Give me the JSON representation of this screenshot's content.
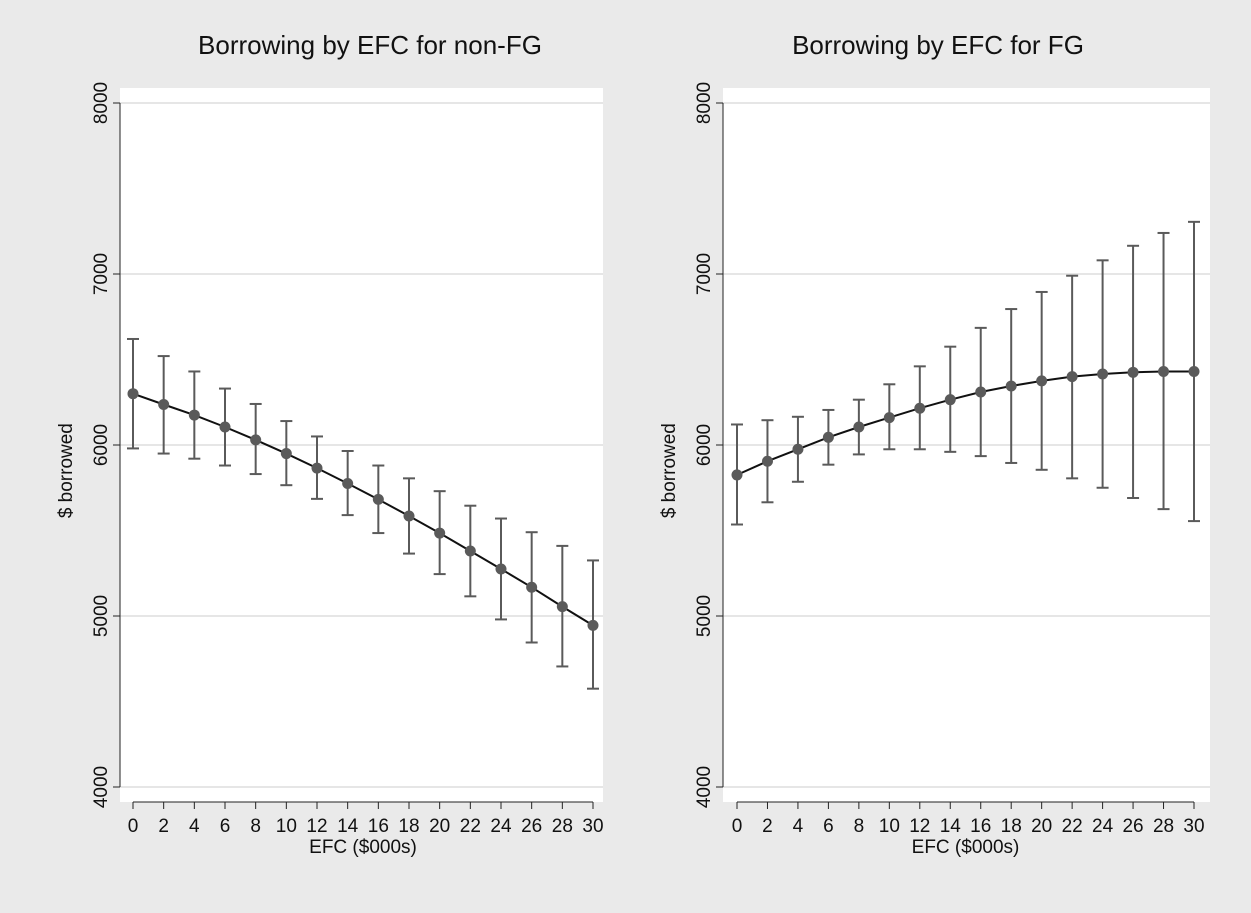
{
  "chart_data": [
    {
      "type": "line",
      "title": "Borrowing by EFC for non-FG",
      "xlabel": "EFC ($000s)",
      "ylabel": "$ borrowed",
      "x": [
        0,
        2,
        4,
        6,
        8,
        10,
        12,
        14,
        16,
        18,
        20,
        22,
        24,
        26,
        28,
        30
      ],
      "xticks": [
        "0",
        "2",
        "4",
        "6",
        "8",
        "10",
        "12",
        "14",
        "16",
        "18",
        "20",
        "22",
        "24",
        "26",
        "28",
        "30"
      ],
      "yticks": [
        "4000",
        "5000",
        "6000",
        "7000",
        "8000"
      ],
      "ylim": [
        4000,
        8000
      ],
      "grid": "horizontal",
      "series": [
        {
          "values": [
            6300,
            6237,
            6175,
            6105,
            6030,
            5950,
            5865,
            5775,
            5682,
            5585,
            5485,
            5380,
            5275,
            5168,
            5055,
            4945
          ],
          "ci_low": [
            5980,
            5950,
            5920,
            5880,
            5830,
            5765,
            5685,
            5590,
            5485,
            5365,
            5245,
            5115,
            4980,
            4845,
            4705,
            4575
          ],
          "ci_high": [
            6620,
            6520,
            6430,
            6330,
            6240,
            6140,
            6050,
            5965,
            5880,
            5805,
            5730,
            5645,
            5570,
            5490,
            5410,
            5325
          ],
          "color": "#5a5a5a"
        }
      ]
    },
    {
      "type": "line",
      "title": "Borrowing by EFC for FG",
      "xlabel": "EFC ($000s)",
      "ylabel": "$ borrowed",
      "x": [
        0,
        2,
        4,
        6,
        8,
        10,
        12,
        14,
        16,
        18,
        20,
        22,
        24,
        26,
        28,
        30
      ],
      "xticks": [
        "0",
        "2",
        "4",
        "6",
        "8",
        "10",
        "12",
        "14",
        "16",
        "18",
        "20",
        "22",
        "24",
        "26",
        "28",
        "30"
      ],
      "yticks": [
        "4000",
        "5000",
        "6000",
        "7000",
        "8000"
      ],
      "ylim": [
        4000,
        8000
      ],
      "grid": "horizontal",
      "series": [
        {
          "values": [
            5825,
            5905,
            5975,
            6045,
            6105,
            6160,
            6215,
            6265,
            6310,
            6345,
            6375,
            6400,
            6415,
            6425,
            6430,
            6430
          ],
          "ci_low": [
            5535,
            5665,
            5785,
            5885,
            5945,
            5975,
            5975,
            5960,
            5935,
            5895,
            5855,
            5805,
            5750,
            5690,
            5625,
            5555
          ],
          "ci_high": [
            6120,
            6145,
            6165,
            6205,
            6265,
            6355,
            6460,
            6575,
            6685,
            6795,
            6895,
            6990,
            7080,
            7165,
            7240,
            7305
          ],
          "color": "#5a5a5a"
        }
      ]
    }
  ],
  "colors": {
    "background": "#eaeaea",
    "plot_area": "#ffffff",
    "gridline": "#dddddd",
    "marker": "#5a5a5a",
    "line": "#111111"
  }
}
